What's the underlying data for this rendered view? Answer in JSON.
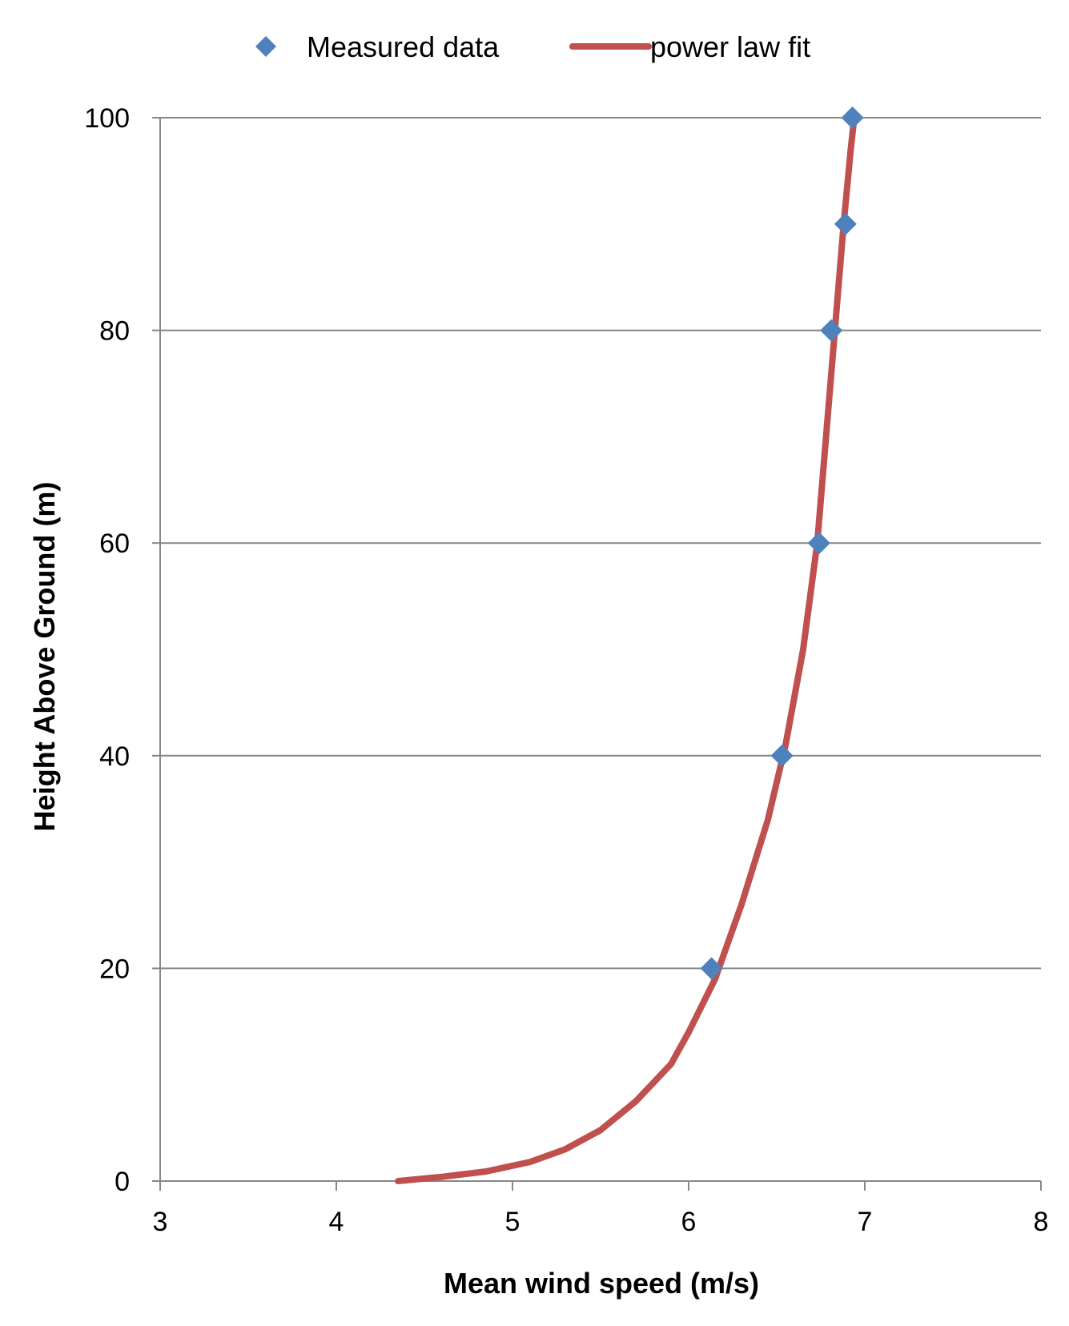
{
  "chart_data": {
    "type": "scatter",
    "xlabel": "Mean wind speed (m/s)",
    "ylabel": "Height Above Ground (m)",
    "xlim": [
      3,
      8
    ],
    "ylim": [
      0,
      100
    ],
    "x_ticks": [
      3,
      4,
      5,
      6,
      7,
      8
    ],
    "y_ticks": [
      0,
      20,
      40,
      60,
      80,
      100
    ],
    "grid": "horizontal",
    "legend_position": "top",
    "series": [
      {
        "name": "Measured data",
        "kind": "scatter",
        "marker": "diamond",
        "color": "#4f81bd",
        "points": [
          {
            "x": 6.13,
            "y": 20
          },
          {
            "x": 6.53,
            "y": 40
          },
          {
            "x": 6.74,
            "y": 60
          },
          {
            "x": 6.81,
            "y": 80
          },
          {
            "x": 6.89,
            "y": 90
          },
          {
            "x": 6.93,
            "y": 100
          }
        ]
      },
      {
        "name": "power law fit",
        "kind": "line",
        "color": "#c0504d",
        "points": [
          {
            "x": 4.35,
            "y": 0
          },
          {
            "x": 4.6,
            "y": 0.4
          },
          {
            "x": 4.85,
            "y": 0.9
          },
          {
            "x": 5.1,
            "y": 1.8
          },
          {
            "x": 5.3,
            "y": 3
          },
          {
            "x": 5.5,
            "y": 4.8
          },
          {
            "x": 5.7,
            "y": 7.5
          },
          {
            "x": 5.9,
            "y": 11
          },
          {
            "x": 6.0,
            "y": 14
          },
          {
            "x": 6.15,
            "y": 19
          },
          {
            "x": 6.3,
            "y": 26
          },
          {
            "x": 6.45,
            "y": 34
          },
          {
            "x": 6.55,
            "y": 41
          },
          {
            "x": 6.65,
            "y": 50
          },
          {
            "x": 6.73,
            "y": 60
          },
          {
            "x": 6.78,
            "y": 70
          },
          {
            "x": 6.83,
            "y": 80
          },
          {
            "x": 6.88,
            "y": 90
          },
          {
            "x": 6.92,
            "y": 97
          },
          {
            "x": 6.94,
            "y": 100
          }
        ]
      }
    ]
  }
}
